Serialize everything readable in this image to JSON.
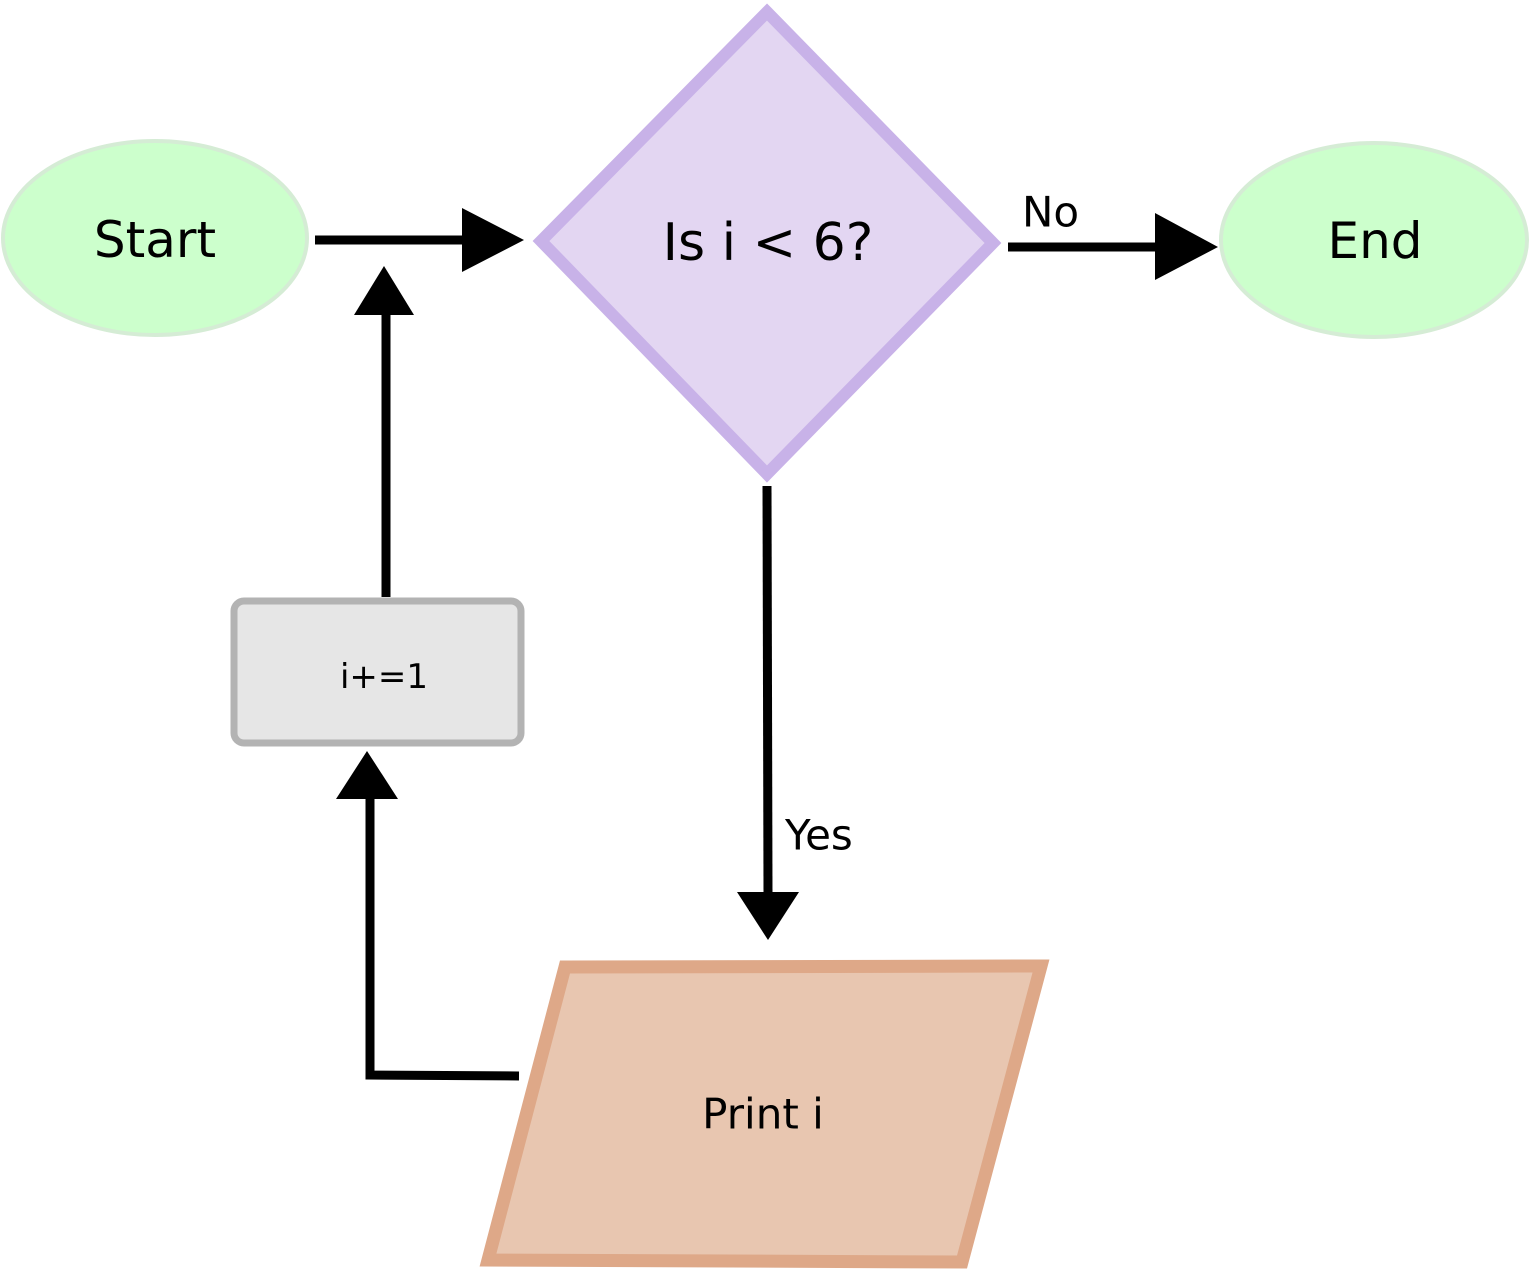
{
  "nodes": {
    "start": {
      "label": "Start",
      "shape": "ellipse",
      "fill": "#ccffcc",
      "stroke": "#d5ecd5"
    },
    "decision": {
      "label": "Is i < 6?",
      "shape": "diamond",
      "fill": "#e3d6f2",
      "stroke": "#c8b2e8"
    },
    "end": {
      "label": "End",
      "shape": "ellipse",
      "fill": "#ccffcc",
      "stroke": "#d5ecd5"
    },
    "print": {
      "label": "Print i",
      "shape": "parallelogram",
      "fill": "#e8c6b0",
      "stroke": "#dea888"
    },
    "increment": {
      "label": "i+=1",
      "shape": "rounded-rectangle",
      "fill": "#e6e6e6",
      "stroke": "#b3b3b3"
    }
  },
  "edges": {
    "no": {
      "label": "No"
    },
    "yes": {
      "label": "Yes"
    }
  }
}
